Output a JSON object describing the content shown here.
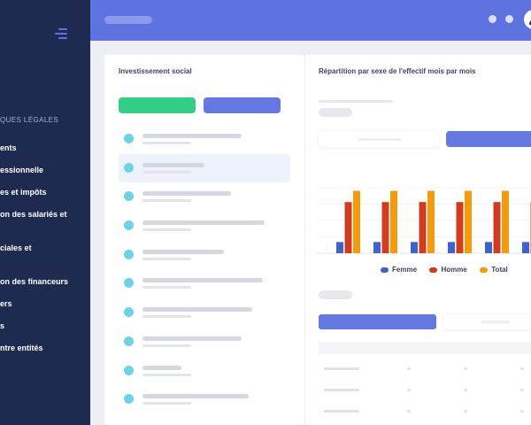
{
  "sidebar": {
    "section_title": "QUES LÉGALES",
    "items": [
      {
        "label": "ents"
      },
      {
        "label": "essionnelle"
      },
      {
        "label": "es et impôts"
      },
      {
        "label": "on des salariés et"
      },
      {
        "label": "ciales et"
      },
      {
        "label": "on des financeurs"
      },
      {
        "label": "ers"
      },
      {
        "label": "s"
      },
      {
        "label": "ntre entités"
      }
    ]
  },
  "left_panel": {
    "title": "Investissement social",
    "selected_index": 1
  },
  "right_panel": {
    "title": "Répartition par sexe de l'effectif mois par mois"
  },
  "colors": {
    "sidebar_bg": "#1e2a4f",
    "topbar_bg": "#5f73e0",
    "accent_blue": "#6577e0",
    "accent_green": "#34cf87",
    "bullet": "#6fd3e8",
    "femme": "#3f63c9",
    "homme": "#cf3c1f",
    "total": "#f59a0b"
  },
  "chart_data": {
    "type": "bar",
    "categories": [
      "",
      "",
      "",
      "",
      "",
      ""
    ],
    "series": [
      {
        "name": "Femme",
        "values": [
          1.8,
          1.8,
          1.8,
          1.8,
          1.8,
          1.8
        ]
      },
      {
        "name": "Homme",
        "values": [
          8.2,
          8.2,
          8.2,
          8.2,
          8.2,
          8.2
        ]
      },
      {
        "name": "Total",
        "values": [
          10,
          10,
          10,
          10,
          10,
          10
        ]
      }
    ],
    "ylim": [
      0,
      10.5
    ],
    "grid": true,
    "legend": "bottom"
  }
}
